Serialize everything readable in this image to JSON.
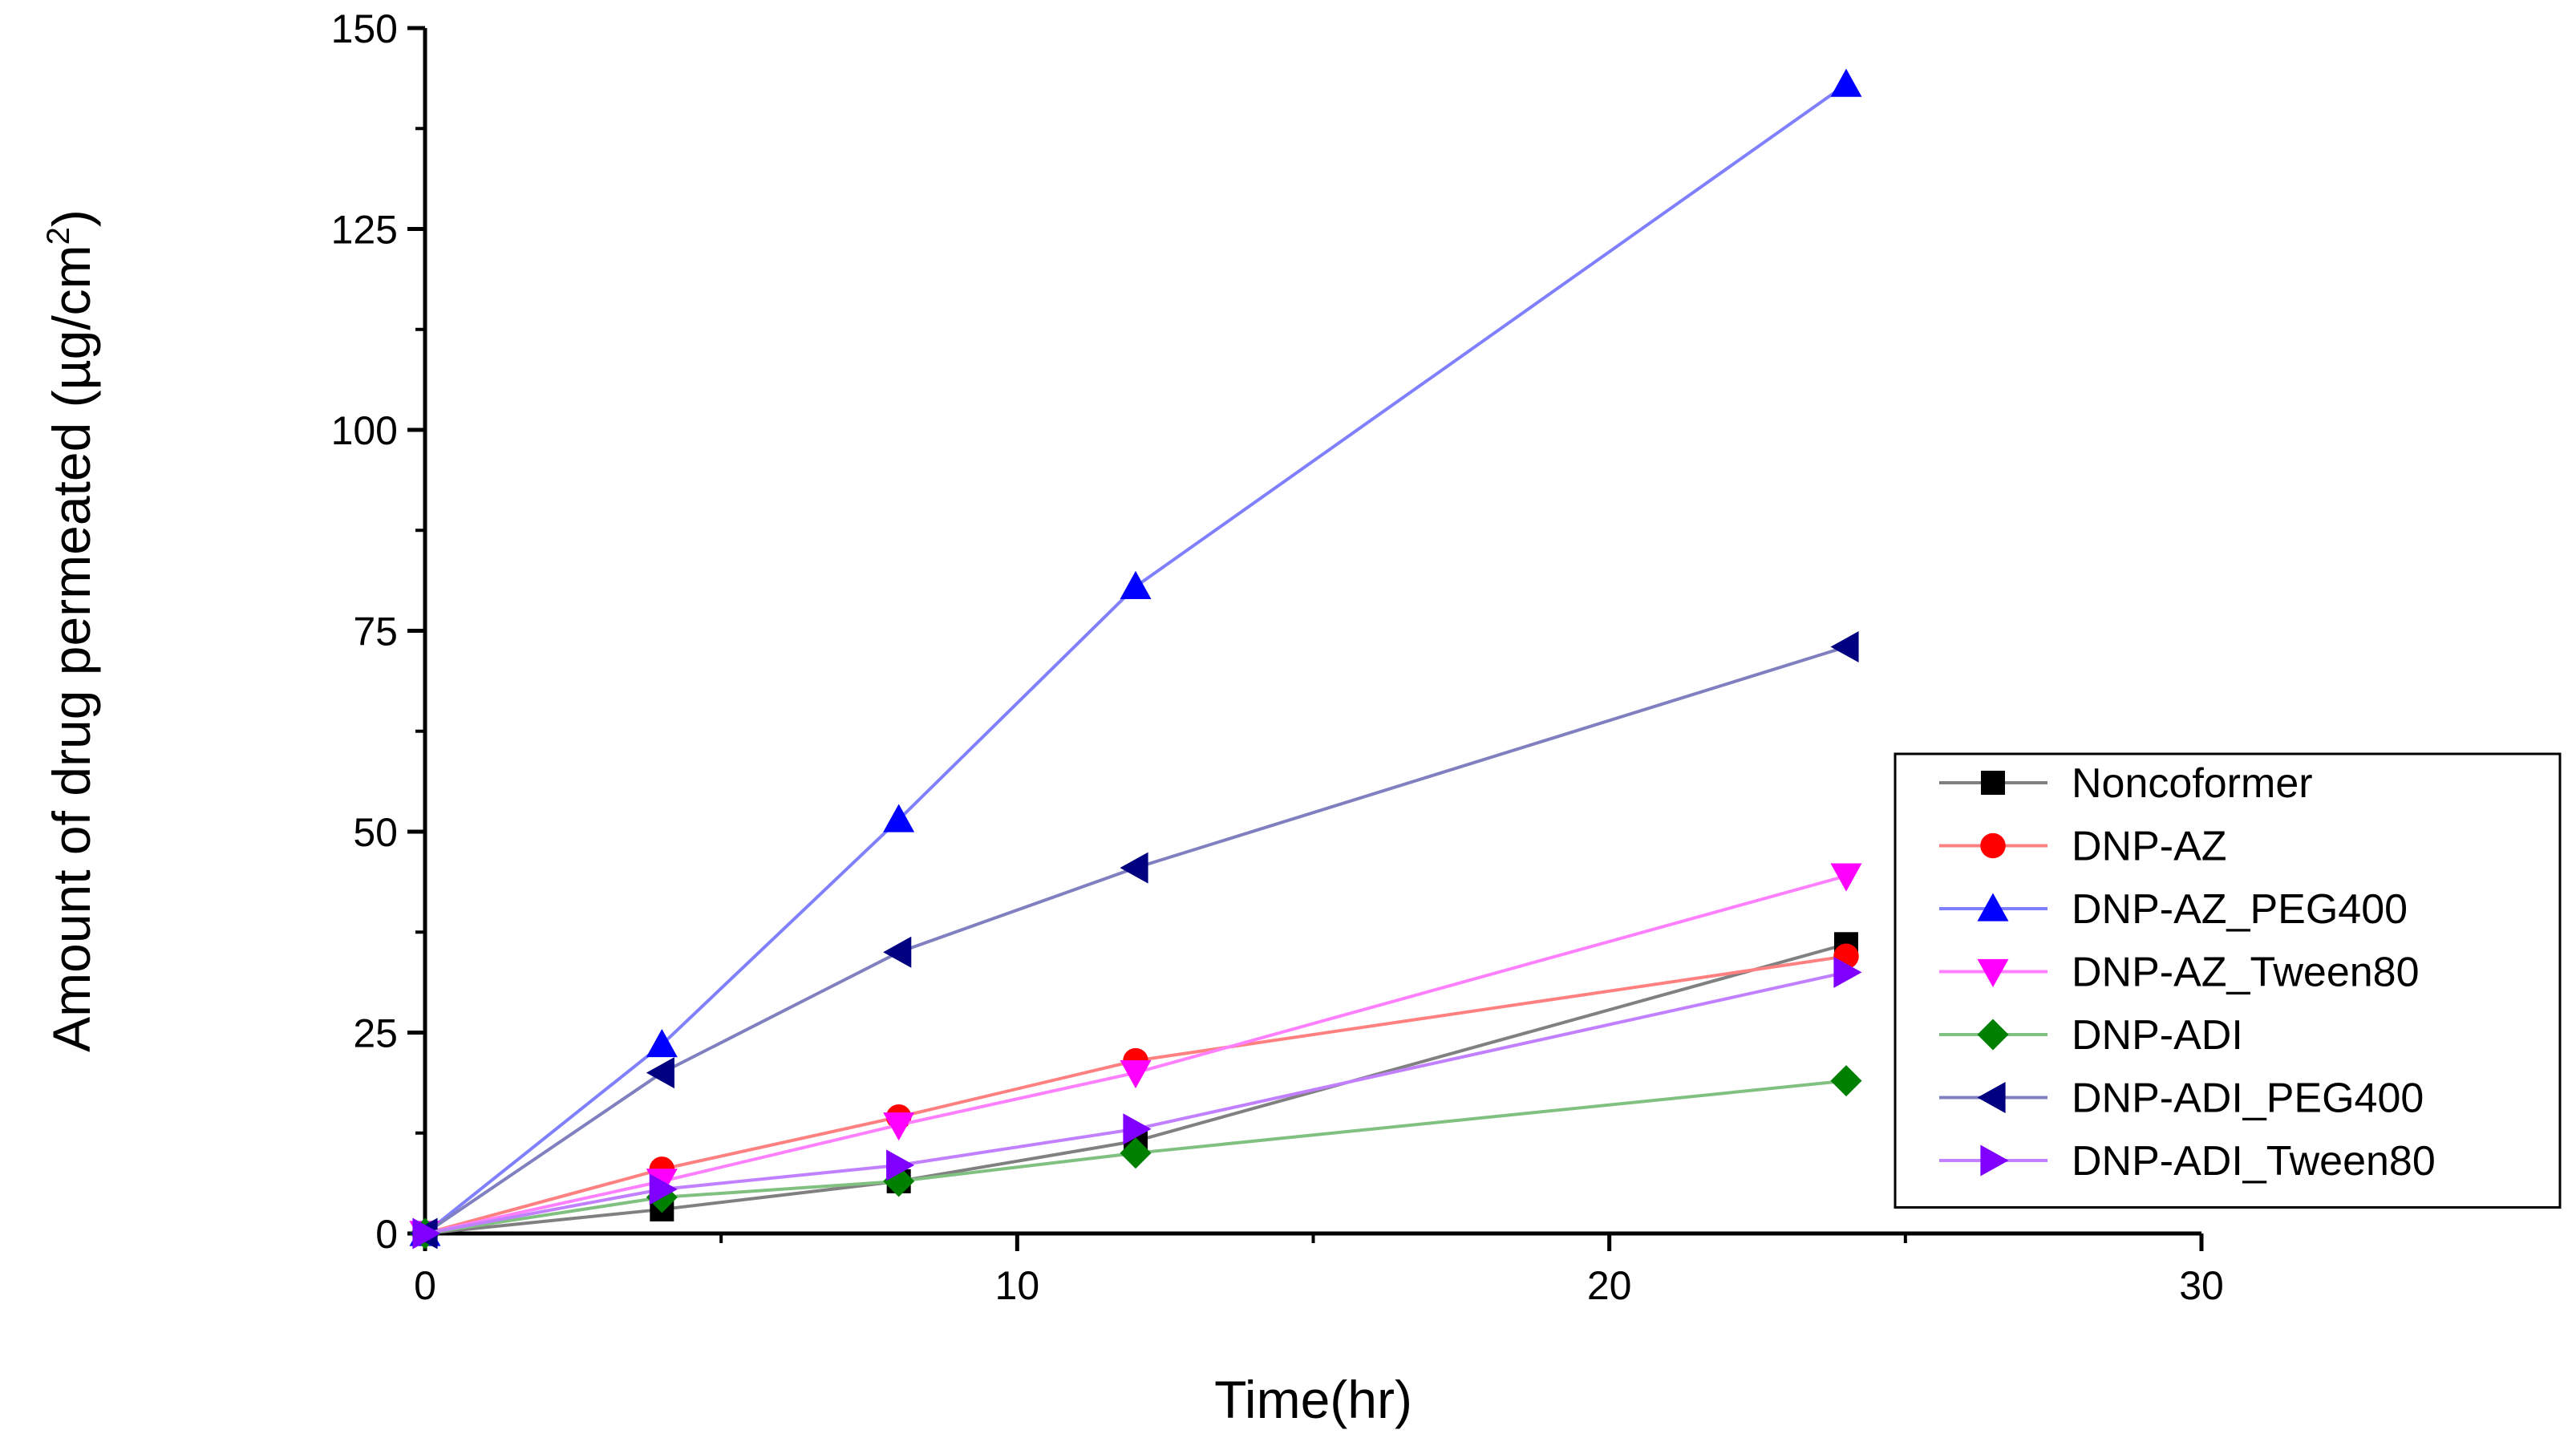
{
  "chart_data": {
    "type": "line",
    "title": "",
    "xlabel": "Time(hr)",
    "ylabel_main": "Amount of drug permeated (µg/cm",
    "ylabel_sup": "2",
    "ylabel_close": ")",
    "xlim": [
      0,
      30
    ],
    "ylim": [
      0,
      150
    ],
    "xticks": [
      0,
      10,
      20,
      30
    ],
    "xtick_labels": [
      "0",
      "10",
      "20",
      "30"
    ],
    "yticks": [
      0,
      25,
      50,
      75,
      100,
      125,
      150
    ],
    "ytick_labels": [
      "0",
      "25",
      "50",
      "75",
      "100",
      "125",
      "150"
    ],
    "grid": false,
    "legend_position": "right",
    "x": [
      0,
      4,
      8,
      12,
      24
    ],
    "series": [
      {
        "name": "Noncoformer",
        "marker": "square",
        "color": "#000000",
        "line_color": "#808080",
        "values": [
          0,
          3,
          6.5,
          11.5,
          36
        ]
      },
      {
        "name": "DNP-AZ",
        "marker": "circle",
        "color": "#ff0000",
        "line_color": "#ff8080",
        "values": [
          0,
          8,
          14.5,
          21.5,
          34.5
        ]
      },
      {
        "name": "DNP-AZ_PEG400",
        "marker": "triangle-up",
        "color": "#0000ff",
        "line_color": "#8080ff",
        "values": [
          0,
          23.5,
          51.5,
          80.5,
          143
        ]
      },
      {
        "name": "DNP-AZ_Tween80",
        "marker": "triangle-down",
        "color": "#ff00ff",
        "line_color": "#ff80ff",
        "values": [
          0,
          6.5,
          13.5,
          20,
          44.5
        ]
      },
      {
        "name": "DNP-ADI",
        "marker": "diamond",
        "color": "#008000",
        "line_color": "#80c080",
        "values": [
          0,
          4.5,
          6.5,
          10,
          19
        ]
      },
      {
        "name": "DNP-ADI_PEG400",
        "marker": "triangle-left",
        "color": "#000080",
        "line_color": "#8080c0",
        "values": [
          0,
          20,
          35,
          45.5,
          73
        ]
      },
      {
        "name": "DNP-ADI_Tween80",
        "marker": "triangle-right",
        "color": "#8000ff",
        "line_color": "#c080ff",
        "values": [
          0,
          5.5,
          8.5,
          13,
          32.5
        ]
      }
    ]
  }
}
